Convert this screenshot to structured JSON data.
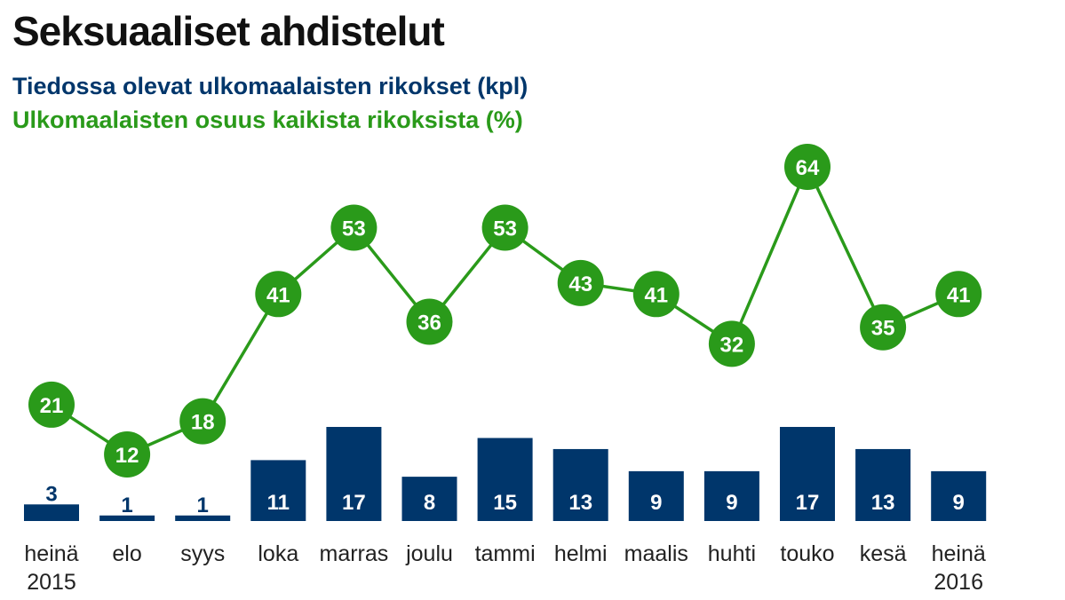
{
  "title": "Seksuaaliset ahdistelut",
  "legend": {
    "bars": "Tiedossa olevat ulkomaalaisten rikokset (kpl)",
    "line": "Ulkomaalaisten osuus kaikista rikoksista (%)"
  },
  "colors": {
    "bar": "#00366b",
    "line": "#2a9a1a",
    "title": "#111111"
  },
  "chart_data": {
    "type": "bar+line",
    "categories": [
      "heinä\n2015",
      "elo",
      "syys",
      "loka",
      "marras",
      "joulu",
      "tammi",
      "helmi",
      "maalis",
      "huhti",
      "touko",
      "kesä",
      "heinä\n2016"
    ],
    "series": [
      {
        "name": "Tiedossa olevat ulkomaalaisten rikokset (kpl)",
        "type": "bar",
        "values": [
          3,
          1,
          1,
          11,
          17,
          8,
          15,
          13,
          9,
          9,
          17,
          13,
          9
        ]
      },
      {
        "name": "Ulkomaalaisten osuus kaikista rikoksista (%)",
        "type": "line",
        "values": [
          21,
          12,
          18,
          41,
          53,
          36,
          53,
          43,
          41,
          32,
          64,
          35,
          41
        ]
      }
    ],
    "grid": false,
    "data_labels": true
  }
}
